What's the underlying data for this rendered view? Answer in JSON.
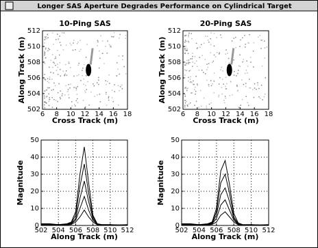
{
  "window_title": "Longer SAS Aperture Degrades Performance on Cylindrical Target",
  "chart_data": [
    {
      "type": "heatmap",
      "title": "10-Ping SAS",
      "xlabel": "Cross Track (m)",
      "ylabel": "Along Track (m)",
      "xlim": [
        6,
        18
      ],
      "xticks": [
        6,
        8,
        10,
        12,
        14,
        16,
        18
      ],
      "ylim": [
        502,
        512
      ],
      "yticks": [
        502,
        504,
        506,
        508,
        510,
        512
      ],
      "spot": {
        "x": 12.5,
        "y": 507
      },
      "color": "#000000"
    },
    {
      "type": "heatmap",
      "title": "20-Ping SAS",
      "xlabel": "Cross Track (m)",
      "ylabel": "Along Track (m)",
      "xlim": [
        6,
        18
      ],
      "xticks": [
        6,
        8,
        10,
        12,
        14,
        16,
        18
      ],
      "ylim": [
        502,
        512
      ],
      "yticks": [
        502,
        504,
        506,
        508,
        510,
        512
      ],
      "spot": {
        "x": 12.5,
        "y": 507
      },
      "color": "#000000"
    },
    {
      "type": "line",
      "xlabel": "Along Track (m)",
      "ylabel": "Magnitude",
      "xlim": [
        502,
        512
      ],
      "xticks": [
        502,
        504,
        506,
        508,
        510,
        512
      ],
      "ylim": [
        0,
        50
      ],
      "yticks": [
        0,
        10,
        20,
        30,
        40,
        50
      ],
      "grid": true,
      "x": [
        502,
        503,
        504,
        505,
        505.5,
        506,
        506.5,
        507,
        507.5,
        508,
        508.5,
        509,
        510,
        511,
        512
      ],
      "series": [
        {
          "color": "#000000",
          "values": [
            1,
            1,
            0.5,
            1,
            2,
            8,
            30,
            46,
            25,
            6,
            1,
            0.5,
            0.5,
            0.3,
            0.5
          ]
        },
        {
          "color": "#000000",
          "values": [
            1,
            0.8,
            0.5,
            0.8,
            1.5,
            6,
            23,
            36,
            19,
            5,
            1,
            0.5,
            0.4,
            0.3,
            0.4
          ]
        },
        {
          "color": "#000000",
          "values": [
            0.8,
            0.6,
            0.4,
            0.6,
            1.2,
            4,
            16,
            26,
            14,
            4,
            0.8,
            0.4,
            0.3,
            0.2,
            0.3
          ]
        },
        {
          "color": "#000000",
          "values": [
            0.6,
            0.5,
            0.3,
            0.5,
            1,
            3,
            10,
            17,
            9,
            3,
            0.6,
            0.3,
            0.2,
            0.2,
            0.2
          ]
        },
        {
          "color": "#000000",
          "values": [
            0.4,
            0.3,
            0.2,
            0.3,
            0.6,
            2,
            5,
            9,
            5,
            2,
            0.4,
            0.2,
            0.2,
            0.1,
            0.2
          ]
        }
      ]
    },
    {
      "type": "line",
      "xlabel": "Along Track (m)",
      "ylabel": "Magnitude",
      "xlim": [
        502,
        512
      ],
      "xticks": [
        502,
        504,
        506,
        508,
        510,
        512
      ],
      "ylim": [
        0,
        50
      ],
      "yticks": [
        0,
        10,
        20,
        30,
        40,
        50
      ],
      "grid": true,
      "x": [
        502,
        503,
        504,
        505,
        505.5,
        506,
        506.5,
        507,
        507.5,
        508,
        508.5,
        509,
        510,
        511,
        512
      ],
      "series": [
        {
          "color": "#000000",
          "values": [
            1,
            1,
            0.5,
            1,
            2,
            10,
            32,
            38,
            24,
            7,
            1.5,
            0.5,
            0.5,
            0.3,
            0.5
          ]
        },
        {
          "color": "#000000",
          "values": [
            0.8,
            0.8,
            0.4,
            0.8,
            1.6,
            8,
            25,
            30,
            19,
            5,
            1,
            0.4,
            0.4,
            0.3,
            0.4
          ]
        },
        {
          "color": "#000000",
          "values": [
            0.6,
            0.6,
            0.3,
            0.6,
            1.2,
            6,
            18,
            22,
            14,
            4,
            0.8,
            0.3,
            0.3,
            0.2,
            0.3
          ]
        },
        {
          "color": "#000000",
          "values": [
            0.5,
            0.4,
            0.3,
            0.5,
            1,
            4,
            12,
            15,
            9,
            3,
            0.6,
            0.3,
            0.2,
            0.2,
            0.2
          ]
        },
        {
          "color": "#000000",
          "values": [
            0.3,
            0.3,
            0.2,
            0.3,
            0.6,
            2,
            6,
            8,
            5,
            2,
            0.4,
            0.2,
            0.2,
            0.1,
            0.2
          ]
        }
      ]
    }
  ]
}
